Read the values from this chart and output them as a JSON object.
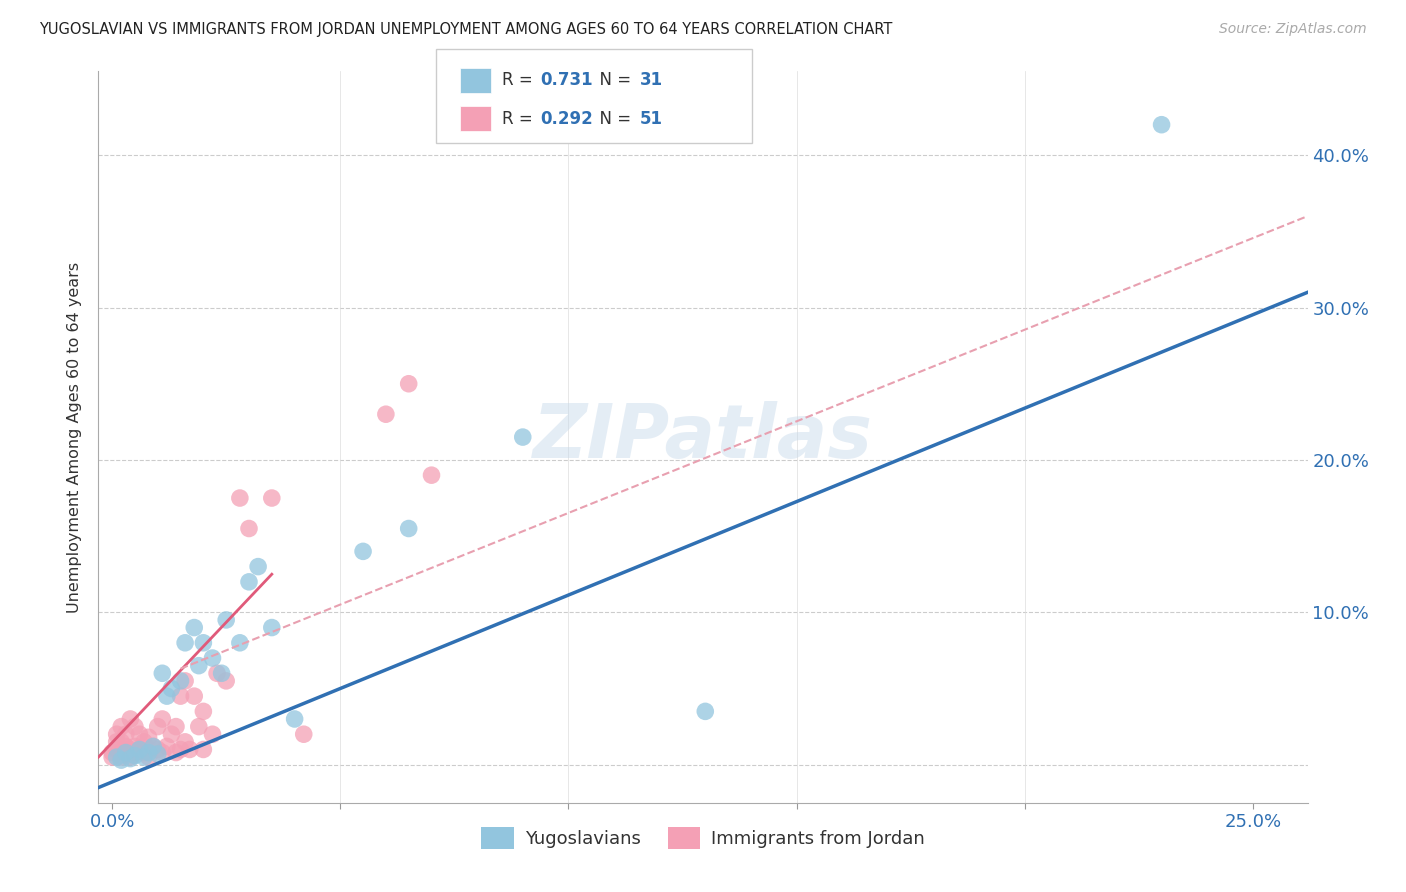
{
  "title": "YUGOSLAVIAN VS IMMIGRANTS FROM JORDAN UNEMPLOYMENT AMONG AGES 60 TO 64 YEARS CORRELATION CHART",
  "source": "Source: ZipAtlas.com",
  "ylabel": "Unemployment Among Ages 60 to 64 years",
  "x_ticks": [
    0.0,
    0.05,
    0.1,
    0.15,
    0.2,
    0.25
  ],
  "x_tick_labels": [
    "0.0%",
    "",
    "",
    "",
    "",
    "25.0%"
  ],
  "y_ticks": [
    0.0,
    0.1,
    0.2,
    0.3,
    0.4
  ],
  "y_tick_labels": [
    "",
    "10.0%",
    "20.0%",
    "30.0%",
    "40.0%"
  ],
  "xlim": [
    -0.003,
    0.262
  ],
  "ylim": [
    -0.025,
    0.455
  ],
  "watermark": "ZIPatlas",
  "legend_r1": "R = 0.731",
  "legend_n1": "N = 31",
  "legend_r2": "R = 0.292",
  "legend_n2": "N = 51",
  "legend_label1": "Yugoslavians",
  "legend_label2": "Immigrants from Jordan",
  "blue_color": "#92c5de",
  "blue_line_color": "#3070b3",
  "pink_color": "#f4a0b5",
  "pink_line_color": "#e05a7a",
  "pink_dash_color": "#e8a0b0",
  "blue_scatter_x": [
    0.001,
    0.002,
    0.003,
    0.004,
    0.005,
    0.006,
    0.007,
    0.008,
    0.009,
    0.01,
    0.011,
    0.012,
    0.013,
    0.015,
    0.016,
    0.018,
    0.019,
    0.02,
    0.022,
    0.024,
    0.025,
    0.028,
    0.03,
    0.032,
    0.035,
    0.04,
    0.055,
    0.065,
    0.09,
    0.13,
    0.23
  ],
  "blue_scatter_y": [
    0.005,
    0.003,
    0.008,
    0.004,
    0.006,
    0.01,
    0.005,
    0.008,
    0.012,
    0.007,
    0.06,
    0.045,
    0.05,
    0.055,
    0.08,
    0.09,
    0.065,
    0.08,
    0.07,
    0.06,
    0.095,
    0.08,
    0.12,
    0.13,
    0.09,
    0.03,
    0.14,
    0.155,
    0.215,
    0.035,
    0.42
  ],
  "pink_scatter_x": [
    0.0,
    0.0,
    0.001,
    0.001,
    0.001,
    0.002,
    0.002,
    0.002,
    0.003,
    0.003,
    0.003,
    0.004,
    0.004,
    0.004,
    0.005,
    0.005,
    0.005,
    0.006,
    0.006,
    0.007,
    0.007,
    0.008,
    0.008,
    0.009,
    0.01,
    0.01,
    0.011,
    0.011,
    0.012,
    0.013,
    0.014,
    0.014,
    0.015,
    0.015,
    0.016,
    0.016,
    0.017,
    0.018,
    0.019,
    0.02,
    0.02,
    0.022,
    0.023,
    0.025,
    0.028,
    0.03,
    0.035,
    0.042,
    0.06,
    0.065,
    0.07
  ],
  "pink_scatter_y": [
    0.005,
    0.008,
    0.01,
    0.015,
    0.02,
    0.005,
    0.015,
    0.025,
    0.008,
    0.012,
    0.02,
    0.005,
    0.01,
    0.03,
    0.008,
    0.012,
    0.025,
    0.01,
    0.02,
    0.008,
    0.015,
    0.005,
    0.018,
    0.012,
    0.01,
    0.025,
    0.008,
    0.03,
    0.012,
    0.02,
    0.008,
    0.025,
    0.01,
    0.045,
    0.015,
    0.055,
    0.01,
    0.045,
    0.025,
    0.01,
    0.035,
    0.02,
    0.06,
    0.055,
    0.175,
    0.155,
    0.175,
    0.02,
    0.23,
    0.25,
    0.19
  ],
  "blue_line_x": [
    -0.003,
    0.262
  ],
  "blue_line_y": [
    -0.015,
    0.31
  ],
  "pink_solid_line_x": [
    -0.003,
    0.035
  ],
  "pink_solid_line_y": [
    0.005,
    0.125
  ],
  "pink_dash_line_x": [
    0.015,
    0.262
  ],
  "pink_dash_line_y": [
    0.063,
    0.36
  ]
}
